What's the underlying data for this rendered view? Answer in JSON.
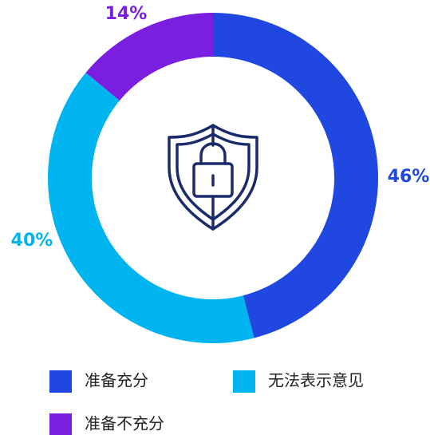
{
  "chart_data": {
    "type": "pie",
    "categories": [
      "准备充分",
      "无法表示意见",
      "准备不充分"
    ],
    "values": [
      46,
      40,
      14
    ],
    "value_labels": [
      "46%",
      "40%",
      "14%"
    ],
    "colors": [
      "#2047e0",
      "#00b4f0",
      "#7a1ee0"
    ],
    "legend": "bottom"
  }
}
